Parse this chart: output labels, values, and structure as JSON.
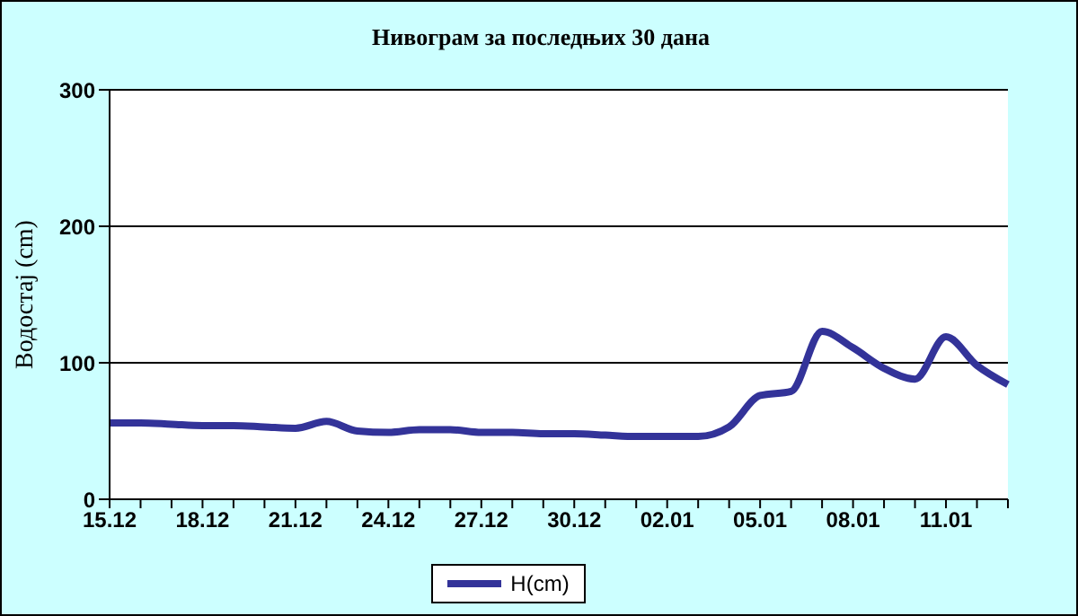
{
  "chart_data": {
    "type": "line",
    "title": "Нивограм за последњих 30 дана",
    "ylabel": "Водостај (cm)",
    "categories": [
      "15.12",
      null,
      null,
      "18.12",
      null,
      null,
      "21.12",
      null,
      null,
      "24.12",
      null,
      null,
      "27.12",
      null,
      null,
      "30.12",
      null,
      null,
      "02.01",
      null,
      null,
      "05.01",
      null,
      null,
      "08.01",
      null,
      null,
      "11.01",
      null,
      null
    ],
    "series": [
      {
        "name": "H(cm)",
        "color": "#333399",
        "values": [
          56,
          56,
          55,
          54,
          54,
          53,
          52,
          57,
          50,
          49,
          51,
          51,
          49,
          49,
          48,
          48,
          47,
          46,
          46,
          46,
          53,
          76,
          79,
          123,
          111,
          96,
          88,
          119,
          98,
          84
        ]
      }
    ],
    "ylim": [
      0,
      300
    ],
    "yticks": [
      0,
      100,
      200,
      300
    ],
    "grid": "y",
    "legend": "bottom",
    "marker": "none",
    "line_style": "solid"
  }
}
